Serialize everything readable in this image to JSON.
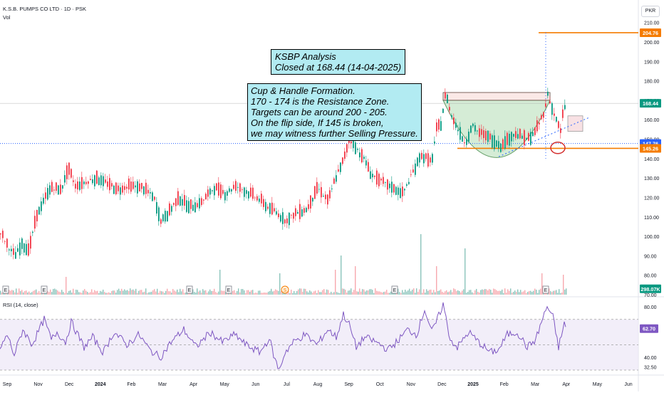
{
  "header": {
    "title": "K.S.B. PUMPS CO LTD · 1D · PSK",
    "volume_label": "Vol",
    "currency": "PKR"
  },
  "rsi_header": "RSI (14, close)",
  "annotations": {
    "title_lines": [
      "KSBP Analysis",
      "Closed at 168.44 (14-04-2025)"
    ],
    "pattern_lines": [
      "Cup & Handle Formation.",
      "170 - 174 is the Resistance Zone.",
      "Targets can be around 200 - 205.",
      "On the flip side, If 145 is broken,",
      "we may witness further Selling Pressure."
    ]
  },
  "colors": {
    "up": "#089981",
    "down": "#f23645",
    "orange": "#f57c00",
    "blue": "#2962ff",
    "rsi": "#7e57c2",
    "cup_fill": "#c8e6c9",
    "resistance_fill": "#fbe9e7"
  },
  "chart_data": {
    "type": "candlestick",
    "x_ticks": [
      "Sep",
      "Nov",
      "Dec",
      "2024",
      "Feb",
      "Mar",
      "Apr",
      "May",
      "Jun",
      "Jul",
      "Aug",
      "Sep",
      "Oct",
      "Nov",
      "Dec",
      "2025",
      "Feb",
      "Mar",
      "Apr",
      "May",
      "Jun"
    ],
    "price_ticks": [
      "70.00",
      "80.00",
      "90.00",
      "100.00",
      "110.00",
      "120.00",
      "130.00",
      "140.00",
      "150.00",
      "160.00",
      "170.00",
      "180.00",
      "190.00",
      "200.00",
      "210.00"
    ],
    "price_range": [
      70,
      215
    ],
    "price_labels": [
      {
        "value": "204.76",
        "level": 204.76,
        "color": "#f57c00"
      },
      {
        "value": "168.44",
        "level": 168.44,
        "color": "#089981"
      },
      {
        "value": "147.76",
        "level": 147.76,
        "color": "#2962ff"
      },
      {
        "value": "145.26",
        "level": 145.26,
        "color": "#f57c00"
      },
      {
        "value": "298.07K",
        "level": 73,
        "color": "#089981"
      }
    ],
    "levels": [
      {
        "name": "target",
        "value": 204.76
      },
      {
        "name": "support",
        "value": 145.26
      },
      {
        "name": "reference",
        "value": 147.76
      },
      {
        "name": "resistance_zone",
        "value": [
          170,
          174
        ]
      }
    ],
    "rsi": {
      "ticks": [
        "32.50",
        "40.00",
        "80.00"
      ],
      "range": [
        30,
        85
      ],
      "bands": [
        30,
        70
      ],
      "last": "62.70",
      "keypoints": [
        [
          0,
          46
        ],
        [
          10,
          58
        ],
        [
          20,
          42
        ],
        [
          32,
          62
        ],
        [
          45,
          50
        ],
        [
          62,
          70
        ],
        [
          72,
          54
        ],
        [
          80,
          60
        ],
        [
          92,
          52
        ],
        [
          100,
          68
        ],
        [
          118,
          48
        ],
        [
          130,
          56
        ],
        [
          145,
          44
        ],
        [
          160,
          60
        ],
        [
          178,
          50
        ],
        [
          195,
          58
        ],
        [
          210,
          46
        ],
        [
          225,
          40
        ],
        [
          240,
          52
        ],
        [
          258,
          62
        ],
        [
          275,
          48
        ],
        [
          295,
          60
        ],
        [
          312,
          52
        ],
        [
          330,
          58
        ],
        [
          345,
          50
        ],
        [
          365,
          44
        ],
        [
          378,
          55
        ],
        [
          386,
          38
        ],
        [
          392,
          30
        ],
        [
          400,
          44
        ],
        [
          412,
          52
        ],
        [
          428,
          58
        ],
        [
          445,
          50
        ],
        [
          460,
          62
        ],
        [
          472,
          56
        ],
        [
          482,
          74
        ],
        [
          490,
          66
        ],
        [
          500,
          48
        ],
        [
          512,
          56
        ],
        [
          528,
          52
        ],
        [
          545,
          46
        ],
        [
          560,
          54
        ],
        [
          572,
          62
        ],
        [
          585,
          58
        ],
        [
          596,
          78
        ],
        [
          606,
          60
        ],
        [
          614,
          70
        ],
        [
          622,
          82
        ],
        [
          632,
          54
        ],
        [
          642,
          48
        ],
        [
          658,
          60
        ],
        [
          672,
          52
        ],
        [
          688,
          44
        ],
        [
          700,
          46
        ],
        [
          712,
          58
        ],
        [
          726,
          60
        ],
        [
          740,
          48
        ],
        [
          752,
          54
        ],
        [
          760,
          68
        ],
        [
          768,
          80
        ],
        [
          776,
          72
        ],
        [
          784,
          48
        ],
        [
          792,
          66
        ]
      ]
    },
    "keypoints": [
      [
        0,
        102
      ],
      [
        10,
        95
      ],
      [
        20,
        90
      ],
      [
        30,
        96
      ],
      [
        40,
        93
      ],
      [
        50,
        110
      ],
      [
        60,
        118
      ],
      [
        70,
        125
      ],
      [
        85,
        124
      ],
      [
        95,
        135
      ],
      [
        105,
        126
      ],
      [
        120,
        128
      ],
      [
        135,
        130
      ],
      [
        150,
        127
      ],
      [
        165,
        124
      ],
      [
        180,
        126
      ],
      [
        200,
        125
      ],
      [
        215,
        120
      ],
      [
        225,
        108
      ],
      [
        235,
        112
      ],
      [
        250,
        120
      ],
      [
        265,
        115
      ],
      [
        280,
        117
      ],
      [
        300,
        125
      ],
      [
        315,
        122
      ],
      [
        330,
        126
      ],
      [
        345,
        123
      ],
      [
        360,
        120
      ],
      [
        375,
        115
      ],
      [
        388,
        112
      ],
      [
        400,
        108
      ],
      [
        415,
        112
      ],
      [
        430,
        114
      ],
      [
        445,
        125
      ],
      [
        460,
        118
      ],
      [
        470,
        130
      ],
      [
        480,
        138
      ],
      [
        490,
        150
      ],
      [
        500,
        145
      ],
      [
        510,
        140
      ],
      [
        520,
        132
      ],
      [
        535,
        128
      ],
      [
        550,
        125
      ],
      [
        565,
        122
      ],
      [
        575,
        130
      ],
      [
        590,
        142
      ],
      [
        605,
        138
      ],
      [
        612,
        155
      ],
      [
        618,
        158
      ],
      [
        625,
        174
      ],
      [
        632,
        163
      ],
      [
        642,
        155
      ],
      [
        652,
        148
      ],
      [
        662,
        157
      ],
      [
        672,
        153
      ],
      [
        682,
        152
      ],
      [
        692,
        149
      ],
      [
        702,
        147
      ],
      [
        712,
        150
      ],
      [
        722,
        153
      ],
      [
        732,
        151
      ],
      [
        742,
        150
      ],
      [
        752,
        155
      ],
      [
        762,
        163
      ],
      [
        768,
        173
      ],
      [
        774,
        166
      ],
      [
        780,
        160
      ],
      [
        786,
        154
      ],
      [
        790,
        165
      ],
      [
        794,
        168.44
      ]
    ],
    "volume_spikes": [
      [
        92,
        25
      ],
      [
        308,
        35
      ],
      [
        392,
        30
      ],
      [
        470,
        35
      ],
      [
        478,
        55
      ],
      [
        498,
        40
      ],
      [
        590,
        85
      ],
      [
        612,
        40
      ],
      [
        652,
        65
      ],
      [
        760,
        30
      ],
      [
        790,
        28
      ]
    ]
  }
}
